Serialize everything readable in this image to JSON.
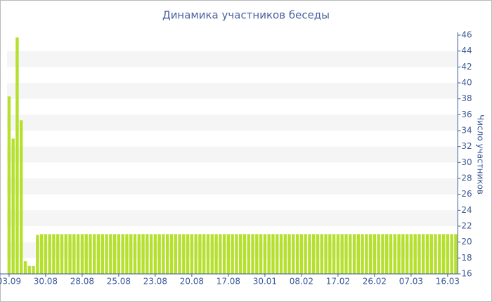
{
  "chart_data": {
    "type": "bar",
    "title": "Динамика участников беседы",
    "y_label": "Число участников",
    "color": "#b5e02e",
    "categories": [
      "03.09",
      null,
      null,
      null,
      null,
      null,
      null,
      null,
      null,
      "30.08",
      null,
      null,
      null,
      null,
      null,
      null,
      null,
      null,
      "28.08",
      null,
      null,
      null,
      null,
      null,
      null,
      null,
      null,
      "25.08",
      null,
      null,
      null,
      null,
      null,
      null,
      null,
      null,
      "23.08",
      null,
      null,
      null,
      null,
      null,
      null,
      null,
      null,
      "20.08",
      null,
      null,
      null,
      null,
      null,
      null,
      null,
      null,
      "17.08",
      null,
      null,
      null,
      null,
      null,
      null,
      null,
      null,
      "30.01",
      null,
      null,
      null,
      null,
      null,
      null,
      null,
      null,
      "08.02",
      null,
      null,
      null,
      null,
      null,
      null,
      null,
      null,
      "17.02",
      null,
      null,
      null,
      null,
      null,
      null,
      null,
      null,
      "26.02",
      null,
      null,
      null,
      null,
      null,
      null,
      null,
      null,
      "07.03",
      null,
      null,
      null,
      null,
      null,
      null,
      null,
      null,
      "16.03",
      null,
      null
    ],
    "values": [
      38.3,
      33,
      45.7,
      35.3,
      17.6,
      17,
      17,
      20.9,
      21,
      21,
      21,
      21,
      21,
      21,
      21,
      21,
      21,
      21,
      21,
      21,
      21,
      21,
      21,
      21,
      21,
      21,
      21,
      21,
      21,
      21,
      21,
      21,
      21,
      21,
      21,
      21,
      21,
      21,
      21,
      21,
      21,
      21,
      21,
      21,
      21,
      21,
      21,
      21,
      21,
      21,
      21,
      21,
      21,
      21,
      21,
      21,
      21,
      21,
      21,
      21,
      21,
      21,
      21,
      21,
      21,
      21,
      21,
      21,
      21,
      21,
      21,
      21,
      21,
      21,
      21,
      21,
      21,
      21,
      21,
      21,
      21,
      21,
      21,
      21,
      21,
      21,
      21,
      21,
      21,
      21,
      21,
      21,
      21,
      21,
      21,
      21,
      21,
      21,
      21,
      21,
      21,
      21,
      21,
      21,
      21,
      21,
      21,
      21,
      21,
      21,
      21
    ],
    "ylim": [
      16,
      46
    ],
    "yticks": [
      16,
      18,
      20,
      22,
      24,
      26,
      28,
      30,
      32,
      34,
      36,
      38,
      40,
      42,
      44,
      46
    ],
    "grid": true
  }
}
